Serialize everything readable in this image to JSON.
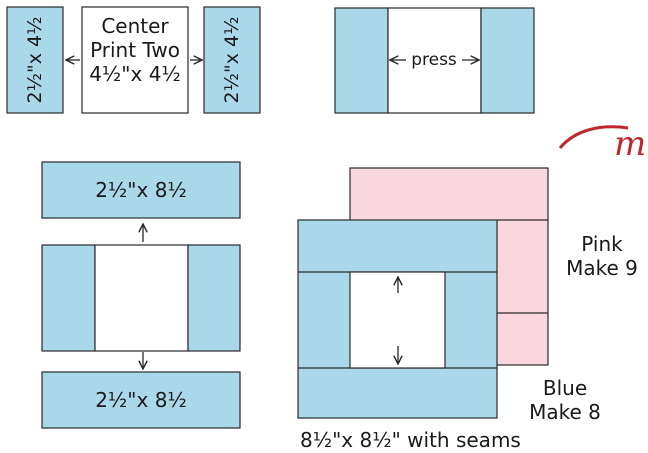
{
  "colors": {
    "blue": "#a9d8e8",
    "pink": "#fad6de",
    "outline": "#2a2a2a",
    "logo_red": "#c0272d"
  },
  "step1": {
    "left_strip": "2½\"x 4½",
    "center_line1": "Center",
    "center_line2": "Print Two",
    "center_line3": "4½\"x 4½",
    "right_strip": "2½\"x 4½"
  },
  "step2": {
    "press_label": "press"
  },
  "step3": {
    "top_strip": "2½\"x 8½",
    "bottom_strip": "2½\"x 8½"
  },
  "block": {
    "pink_line1": "Pink",
    "pink_line2": "Make 9",
    "blue_line1": "Blue",
    "blue_line2": "Make 8",
    "size_caption": "8½\"x 8½\" with seams"
  },
  "logo": {
    "fragment": "m"
  }
}
